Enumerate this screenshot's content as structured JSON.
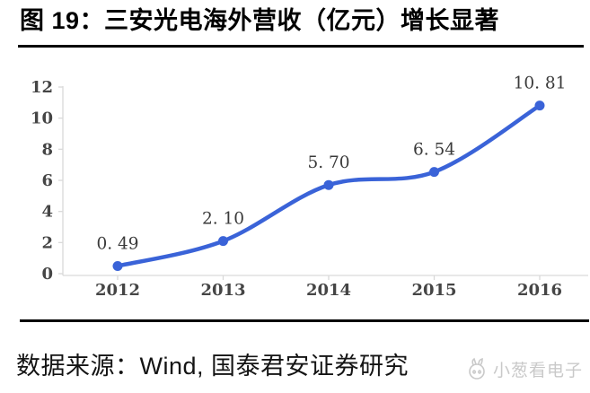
{
  "page": {
    "title": "图 19：三安光电海外营收（亿元）增长显著",
    "footer_source": "数据来源：Wind, 国泰君安证券研究",
    "watermark_text": "小葱看电子"
  },
  "colors": {
    "line": "#3a63d8",
    "marker": "#3a63d8",
    "axis": "#d9d9d9",
    "tick_label": "#454545",
    "data_label": "#3a3a3a",
    "title_text": "#000000",
    "rule": "#000000",
    "footer_text": "#141414",
    "watermark": "#c9c9c9",
    "background": "#ffffff"
  },
  "chart_data": {
    "type": "line",
    "title": "",
    "xlabel": "",
    "ylabel": "",
    "categories": [
      "2012",
      "2013",
      "2014",
      "2015",
      "2016"
    ],
    "values": [
      0.49,
      2.1,
      5.7,
      6.54,
      10.81
    ],
    "data_labels": [
      "0. 49",
      "2. 10",
      "5. 70",
      "6. 54",
      "10. 81"
    ],
    "ylim": [
      0,
      12
    ],
    "yticks": [
      0,
      2,
      4,
      6,
      8,
      10,
      12
    ],
    "grid": false,
    "legend": "none",
    "line_style": "smooth",
    "markers": "circle"
  }
}
